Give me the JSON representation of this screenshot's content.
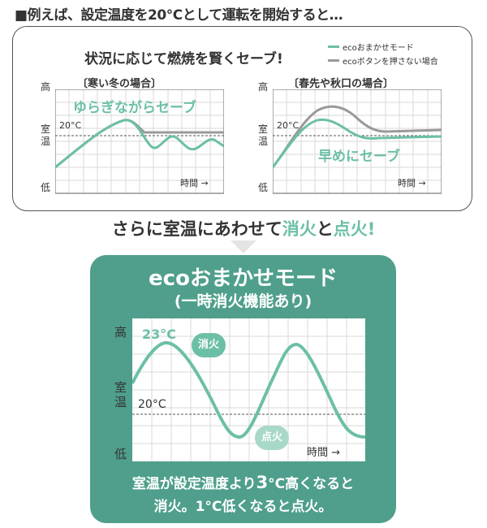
{
  "intro": "■例えば、設定温度を20°Cとして運転を開始すると…",
  "panel1": {
    "heading": "状況に応じて燃焼を賢くセーブ!",
    "legend": [
      {
        "label": "ecoおまかせモード",
        "color": "#6cbfa7"
      },
      {
        "label": "ecoボタンを押さない場合",
        "color": "#9a9a9a"
      }
    ],
    "left": {
      "title": "〔寒い冬の場合〕",
      "callout": "ゆらぎながらセーブ",
      "high": "高",
      "room": "室",
      "temp": "温",
      "low": "低",
      "ref": "20°C",
      "time": "時間 →"
    },
    "right": {
      "title": "〔春先や秋口の場合〕",
      "callout": "早めにセーブ",
      "high": "高",
      "room": "室",
      "temp": "温",
      "low": "低",
      "ref": "20°C",
      "time": "時間 →"
    }
  },
  "middle": {
    "part1": "さらに室温にあわせて",
    "part2": "消火",
    "part3": "と",
    "part4": "点火",
    "part5": "!"
  },
  "panel2": {
    "title": "ecoおまかせモード",
    "subtitle": "(一時消火機能あり)",
    "high": "高",
    "room": "室",
    "temp": "温",
    "low": "低",
    "peak": "23°C",
    "ref": "20°C",
    "time": "時間 →",
    "off_bubble": "消火",
    "on_bubble": "点火",
    "line1_a": "室温が設定温度より",
    "line1_b": "3",
    "line1_c": "°C高くなると",
    "line2": "消火。1°C低くなると点火。"
  },
  "colors": {
    "eco": "#6cbfa7",
    "normal": "#9a9a9a",
    "panel": "#4f9f8c"
  }
}
